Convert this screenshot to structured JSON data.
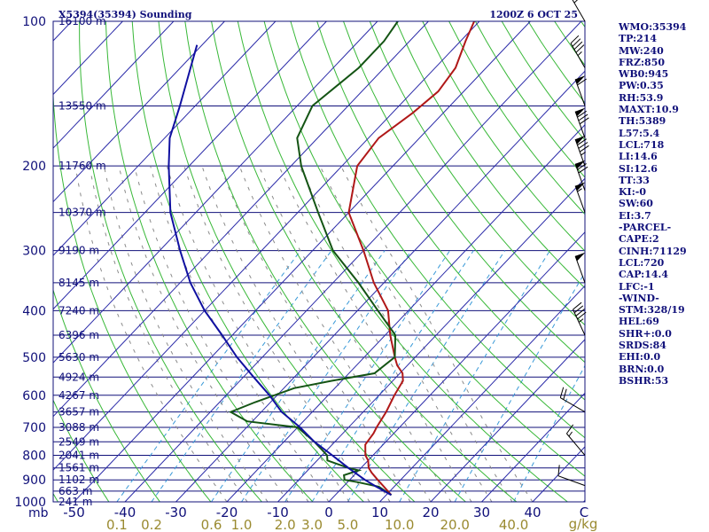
{
  "header": {
    "title": "X5394(35394) Sounding",
    "time": "1200Z  6 OCT 25"
  },
  "stats": [
    "WMO:35394",
    "TP:214",
    "MW:240",
    "FRZ:850",
    "WB0:945",
    "PW:0.35",
    "RH:53.9",
    "MAXT:10.9",
    "TH:5389",
    "L57:5.4",
    "LCL:718",
    "LI:14.6",
    "SI:12.6",
    "TT:33",
    "KI:-0",
    "SW:60",
    "EI:3.7",
    "-PARCEL-",
    "CAPE:2",
    "CINH:71129",
    "LCL:720",
    "CAP:14.4",
    "LFC:-1",
    "-WIND-",
    "STM:328/19",
    "HEL:69",
    "SHR+:0.0",
    "SRDS:84",
    "EHI:0.0",
    "BRN:0.0",
    "BSHR:53"
  ],
  "colors": {
    "isobar": "#10107a",
    "isotherm": "#2a2aa8",
    "dry_adiabat": "#38b838",
    "moist_adiabat": "#8a8a8a",
    "mixing_ratio": "#3a9ad8",
    "temperature": "#b01818",
    "dewpoint": "#145414",
    "parcel": "#1010a0",
    "text": "#10107a",
    "mixing_label": "#9a8a30"
  },
  "chart_data": {
    "type": "skew-t",
    "title": "X5394(35394) Sounding",
    "xlabel": "",
    "ylabel": "mb",
    "pressure_ticks": [
      100,
      200,
      300,
      400,
      500,
      600,
      700,
      800,
      900,
      1000
    ],
    "pressure_range": [
      100,
      1000
    ],
    "temperature_ticks": [
      -50,
      -40,
      -30,
      -20,
      -10,
      0,
      10,
      20,
      30,
      40
    ],
    "last_x_label": "C",
    "height_labels": [
      {
        "p": 100,
        "label": "16100 m"
      },
      {
        "p": 150,
        "label": "13550 m"
      },
      {
        "p": 200,
        "label": "11760 m"
      },
      {
        "p": 250,
        "label": "10370 m"
      },
      {
        "p": 300,
        "label": "9190 m"
      },
      {
        "p": 350,
        "label": "8145 m"
      },
      {
        "p": 400,
        "label": "7240 m"
      },
      {
        "p": 450,
        "label": "6396 m"
      },
      {
        "p": 500,
        "label": "5630 m"
      },
      {
        "p": 550,
        "label": "4924 m"
      },
      {
        "p": 600,
        "label": "4267 m"
      },
      {
        "p": 650,
        "label": "3657 m"
      },
      {
        "p": 700,
        "label": "3088 m"
      },
      {
        "p": 750,
        "label": "2549 m"
      },
      {
        "p": 800,
        "label": "2041 m"
      },
      {
        "p": 850,
        "label": "1561 m"
      },
      {
        "p": 900,
        "label": "1102 m"
      },
      {
        "p": 950,
        "label": "663 m"
      },
      {
        "p": 1000,
        "label": "241 m"
      }
    ],
    "mixing_ratio_labels": [
      {
        "w": 0.1,
        "label": "0.1"
      },
      {
        "w": 0.2,
        "label": "0.2"
      },
      {
        "w": 0.6,
        "label": "0.6"
      },
      {
        "w": 1.0,
        "label": "1.0"
      },
      {
        "w": 2.0,
        "label": "2.0"
      },
      {
        "w": 3.0,
        "label": "3.0"
      },
      {
        "w": 5.0,
        "label": "5.0"
      },
      {
        "w": 10.0,
        "label": "10.0"
      },
      {
        "w": 20.0,
        "label": "20.0"
      },
      {
        "w": 40.0,
        "label": "40.0"
      }
    ],
    "mixing_unit": "g/kg",
    "series": [
      {
        "key": "temperature",
        "points": [
          [
            968,
            11.0
          ],
          [
            930,
            8.0
          ],
          [
            900,
            5.5
          ],
          [
            870,
            3.0
          ],
          [
            850,
            1.5
          ],
          [
            820,
            0.0
          ],
          [
            800,
            -1.5
          ],
          [
            760,
            -3.5
          ],
          [
            720,
            -4.0
          ],
          [
            700,
            -4.5
          ],
          [
            650,
            -5.5
          ],
          [
            600,
            -7.0
          ],
          [
            560,
            -8.0
          ],
          [
            540,
            -9.5
          ],
          [
            520,
            -12.0
          ],
          [
            500,
            -14.0
          ],
          [
            450,
            -19.0
          ],
          [
            400,
            -24.0
          ],
          [
            350,
            -32.0
          ],
          [
            300,
            -40.0
          ],
          [
            250,
            -50.0
          ],
          [
            200,
            -57.0
          ],
          [
            175,
            -58.0
          ],
          [
            155,
            -56.0
          ],
          [
            140,
            -55.0
          ],
          [
            125,
            -56.0
          ],
          [
            110,
            -59.0
          ],
          [
            100,
            -61.0
          ]
        ]
      },
      {
        "key": "dewpoint",
        "points": [
          [
            968,
            11.0
          ],
          [
            930,
            7.0
          ],
          [
            910,
            2.0
          ],
          [
            900,
            -1.0
          ],
          [
            880,
            -2.0
          ],
          [
            860,
            0.0
          ],
          [
            850,
            -2.5
          ],
          [
            820,
            -8.0
          ],
          [
            800,
            -9.0
          ],
          [
            750,
            -14.0
          ],
          [
            700,
            -20.0
          ],
          [
            680,
            -31.0
          ],
          [
            650,
            -36.0
          ],
          [
            620,
            -33.0
          ],
          [
            580,
            -28.0
          ],
          [
            560,
            -22.0
          ],
          [
            540,
            -15.0
          ],
          [
            500,
            -14.0
          ],
          [
            450,
            -18.0
          ],
          [
            400,
            -26.0
          ],
          [
            350,
            -35.0
          ],
          [
            300,
            -46.0
          ],
          [
            250,
            -56.0
          ],
          [
            200,
            -68.0
          ],
          [
            175,
            -74.0
          ],
          [
            150,
            -77.0
          ],
          [
            125,
            -75.0
          ],
          [
            110,
            -75.0
          ],
          [
            100,
            -76.0
          ]
        ]
      },
      {
        "key": "parcel",
        "points": [
          [
            968,
            11.0
          ],
          [
            930,
            6.5
          ],
          [
            900,
            3.0
          ],
          [
            850,
            -2.5
          ],
          [
            800,
            -8.0
          ],
          [
            750,
            -14.0
          ],
          [
            700,
            -19.5
          ],
          [
            650,
            -26.0
          ],
          [
            600,
            -31.5
          ],
          [
            550,
            -38.0
          ],
          [
            500,
            -45.0
          ],
          [
            450,
            -52.0
          ],
          [
            400,
            -60.0
          ],
          [
            350,
            -68.0
          ],
          [
            300,
            -76.0
          ],
          [
            250,
            -85.0
          ],
          [
            200,
            -94.0
          ],
          [
            175,
            -99.0
          ],
          [
            150,
            -103.0
          ],
          [
            125,
            -108.0
          ],
          [
            112,
            -111.0
          ]
        ]
      }
    ],
    "wind_barbs": [
      {
        "p": 100,
        "dir": 330,
        "spd": 30
      },
      {
        "p": 125,
        "dir": 330,
        "spd": 45
      },
      {
        "p": 150,
        "dir": 340,
        "spd": 60
      },
      {
        "p": 175,
        "dir": 340,
        "spd": 80
      },
      {
        "p": 200,
        "dir": 340,
        "spd": 85
      },
      {
        "p": 225,
        "dir": 340,
        "spd": 70
      },
      {
        "p": 250,
        "dir": 340,
        "spd": 55
      },
      {
        "p": 350,
        "dir": 340,
        "spd": 50
      },
      {
        "p": 450,
        "dir": 335,
        "spd": 45
      },
      {
        "p": 650,
        "dir": 300,
        "spd": 20
      },
      {
        "p": 800,
        "dir": 320,
        "spd": 15
      },
      {
        "p": 925,
        "dir": 290,
        "spd": 10
      }
    ],
    "grid": true,
    "legend": "none"
  }
}
